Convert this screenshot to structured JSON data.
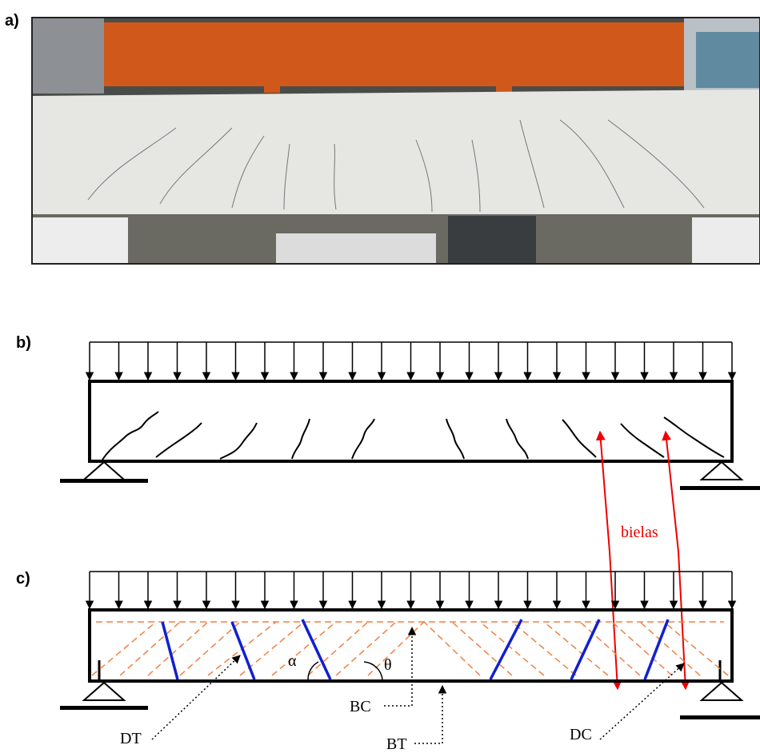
{
  "panels": {
    "a": "a)",
    "b": "b)",
    "c": "c)"
  },
  "annotations": {
    "bielas": "bielas",
    "alpha": "α",
    "theta": "θ",
    "bc": "BC",
    "bt": "BT",
    "dt": "DT",
    "dc": "DC"
  }
}
